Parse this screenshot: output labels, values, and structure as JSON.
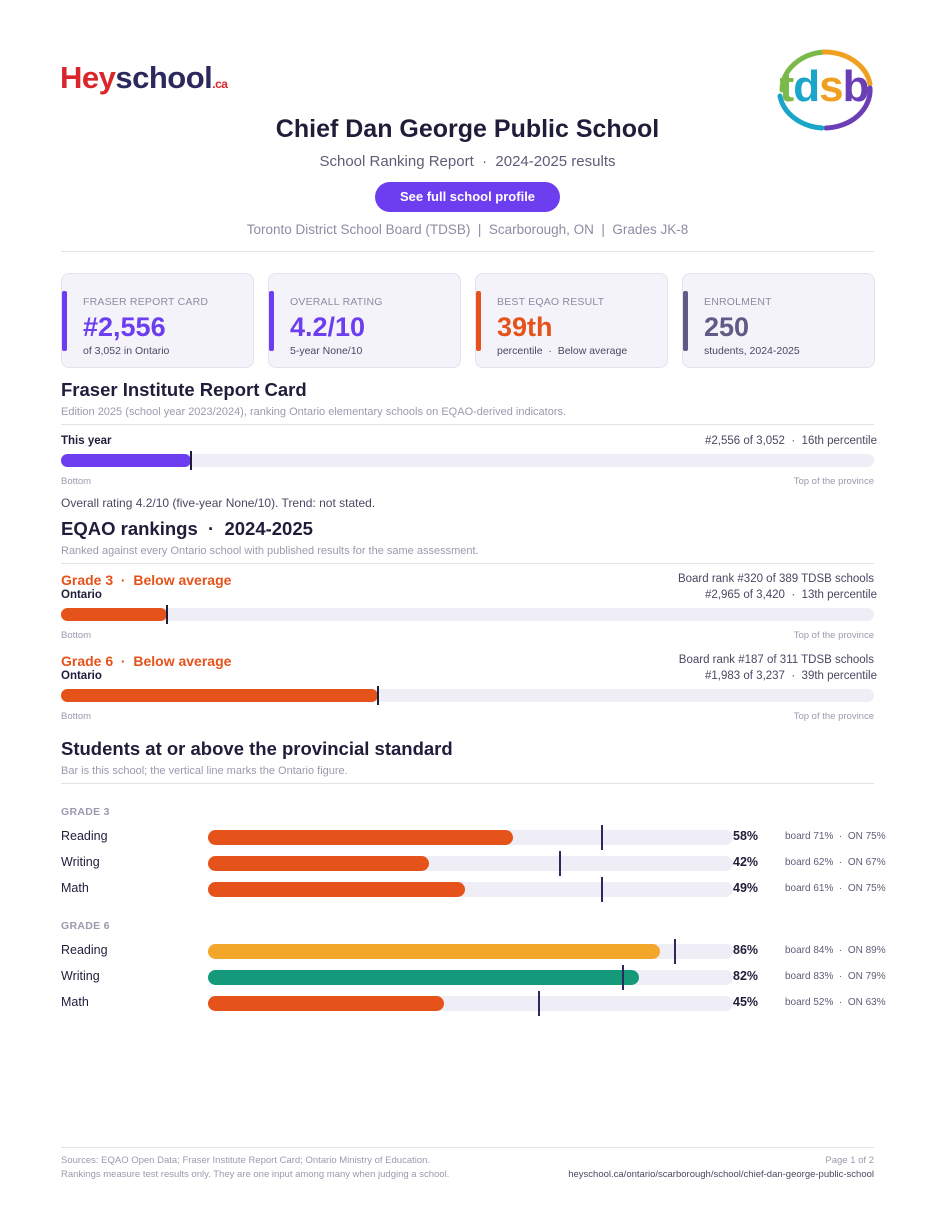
{
  "logos": {
    "heyschool": {
      "hey": "Hey",
      "school": "school",
      "ca": ".ca"
    },
    "tdsb": "tdsb"
  },
  "header": {
    "title": "Chief Dan George Public School",
    "subtitle": "School Ranking Report  ·  2024-2025 results",
    "profile_button": "See full school profile",
    "meta": "Toronto District School Board (TDSB)  |  Scarborough, ON  |  Grades JK-8"
  },
  "stats": [
    {
      "label": "FRASER REPORT CARD",
      "value": "#2,556",
      "sub": "of 3,052 in Ontario",
      "color": "#6d3df0"
    },
    {
      "label": "OVERALL RATING",
      "value": "4.2/10",
      "sub": "5-year None/10",
      "color": "#6d3df0"
    },
    {
      "label": "BEST EQAO RESULT",
      "value": "39th",
      "sub": "percentile  ·  Below average",
      "color": "#e5521a"
    },
    {
      "label": "ENROLMENT",
      "value": "250",
      "sub": "students, 2024-2025",
      "color": "#5f5a86"
    }
  ],
  "fraser": {
    "heading": "Fraser Institute Report Card",
    "desc": "Edition 2025 (school year 2023/2024), ranking Ontario elementary schools on EQAO-derived indicators.",
    "row_label": "This year",
    "rank_text": "#2,556 of 3,052  ·  16th percentile",
    "percentile": 16,
    "bottom_label": "Bottom",
    "top_label": "Top of the province",
    "note": "Overall rating 4.2/10 (five-year None/10). Trend: not stated.",
    "color": "#6d3df0"
  },
  "eqao": {
    "heading": "EQAO rankings  ·  2024-2025",
    "desc": "Ranked against every Ontario school with published results for the same assessment.",
    "grades": [
      {
        "head": "Grade 3  ·  Below average",
        "scope": "Ontario",
        "board_rank": "Board rank #320 of 389 TDSB schools",
        "rank_text": "#2,965 of 3,420  ·  13th percentile",
        "percentile": 13,
        "bottom_label": "Bottom",
        "top_label": "Top of the province",
        "color": "#e5521a"
      },
      {
        "head": "Grade 6  ·  Below average",
        "scope": "Ontario",
        "board_rank": "Board rank #187 of 311 TDSB schools",
        "rank_text": "#1,983 of 3,237  ·  39th percentile",
        "percentile": 39,
        "bottom_label": "Bottom",
        "top_label": "Top of the province",
        "color": "#e5521a"
      }
    ]
  },
  "standard": {
    "heading": "Students at or above the provincial standard",
    "desc": "Bar is this school; the vertical line marks the Ontario figure.",
    "groups": [
      {
        "grade": "GRADE 3",
        "rows": [
          {
            "subject": "Reading",
            "pct_label": "58%",
            "value": 58,
            "ontario": 75,
            "cmp": "board 71%  ·  ON 75%",
            "color": "#e5521a"
          },
          {
            "subject": "Writing",
            "pct_label": "42%",
            "value": 42,
            "ontario": 67,
            "cmp": "board 62%  ·  ON 67%",
            "color": "#e5521a"
          },
          {
            "subject": "Math",
            "pct_label": "49%",
            "value": 49,
            "ontario": 75,
            "cmp": "board 61%  ·  ON 75%",
            "color": "#e5521a"
          }
        ]
      },
      {
        "grade": "GRADE 6",
        "rows": [
          {
            "subject": "Reading",
            "pct_label": "86%",
            "value": 86,
            "ontario": 89,
            "cmp": "board 84%  ·  ON 89%",
            "color": "#f2a62a"
          },
          {
            "subject": "Writing",
            "pct_label": "82%",
            "value": 82,
            "ontario": 79,
            "cmp": "board 83%  ·  ON 79%",
            "color": "#149a7b"
          },
          {
            "subject": "Math",
            "pct_label": "45%",
            "value": 45,
            "ontario": 63,
            "cmp": "board 52%  ·  ON 63%",
            "color": "#e5521a"
          }
        ]
      }
    ]
  },
  "footer": {
    "sources": "Sources: EQAO Open Data; Fraser Institute Report Card; Ontario Ministry of Education.",
    "disclaimer": "Rankings measure test results only. They are one input among many when judging a school.",
    "page": "Page 1 of 2",
    "url": "heyschool.ca/ontario/scarborough/school/chief-dan-george-public-school"
  }
}
